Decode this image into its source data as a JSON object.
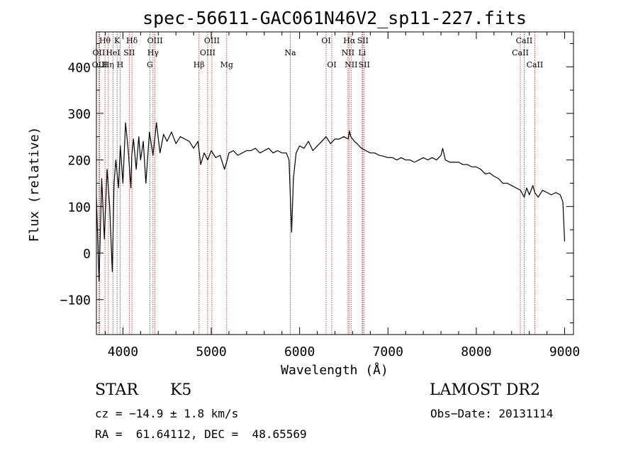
{
  "chart_data": {
    "type": "line",
    "title": "spec-56611-GAC061N46V2_sp11-227.fits",
    "xlabel": "Wavelength (Å)",
    "ylabel": "Flux (relative)",
    "xlim": [
      3700,
      9100
    ],
    "ylim": [
      -175,
      475
    ],
    "xticks": [
      4000,
      5000,
      6000,
      7000,
      8000,
      9000
    ],
    "yticks": [
      -100,
      0,
      100,
      200,
      300,
      400
    ],
    "grid": false,
    "series": [
      {
        "name": "flux",
        "x": [
          3700,
          3730,
          3760,
          3790,
          3820,
          3850,
          3880,
          3900,
          3920,
          3950,
          3970,
          4000,
          4030,
          4060,
          4090,
          4100,
          4120,
          4150,
          4180,
          4200,
          4230,
          4260,
          4300,
          4340,
          4380,
          4420,
          4460,
          4500,
          4550,
          4600,
          4650,
          4700,
          4750,
          4800,
          4850,
          4880,
          4920,
          4960,
          5000,
          5050,
          5100,
          5150,
          5180,
          5200,
          5250,
          5300,
          5350,
          5400,
          5450,
          5500,
          5550,
          5600,
          5650,
          5700,
          5750,
          5800,
          5850,
          5880,
          5895,
          5910,
          5930,
          5960,
          6000,
          6050,
          6100,
          6150,
          6200,
          6250,
          6300,
          6350,
          6400,
          6450,
          6500,
          6550,
          6563,
          6580,
          6620,
          6650,
          6700,
          6750,
          6800,
          6850,
          6900,
          6950,
          7000,
          7050,
          7100,
          7150,
          7200,
          7250,
          7300,
          7350,
          7400,
          7450,
          7500,
          7550,
          7600,
          7620,
          7650,
          7700,
          7750,
          7800,
          7850,
          7900,
          7950,
          8000,
          8050,
          8100,
          8150,
          8200,
          8250,
          8300,
          8350,
          8400,
          8450,
          8500,
          8542,
          8570,
          8600,
          8640,
          8662,
          8700,
          8750,
          8800,
          8850,
          8900,
          8950,
          8980,
          9000
        ],
        "values": [
          120,
          -60,
          160,
          30,
          180,
          100,
          -40,
          150,
          200,
          140,
          230,
          150,
          280,
          220,
          140,
          210,
          245,
          180,
          250,
          200,
          240,
          150,
          260,
          210,
          280,
          215,
          255,
          240,
          260,
          235,
          250,
          245,
          240,
          225,
          240,
          190,
          215,
          200,
          220,
          205,
          210,
          180,
          200,
          215,
          220,
          210,
          215,
          220,
          220,
          225,
          215,
          220,
          225,
          215,
          220,
          215,
          215,
          200,
          120,
          45,
          160,
          215,
          230,
          225,
          240,
          220,
          230,
          240,
          250,
          235,
          245,
          245,
          250,
          245,
          262,
          250,
          240,
          235,
          225,
          220,
          215,
          215,
          210,
          208,
          205,
          205,
          200,
          205,
          200,
          200,
          195,
          200,
          205,
          200,
          205,
          200,
          210,
          225,
          200,
          195,
          195,
          195,
          190,
          190,
          185,
          185,
          180,
          170,
          172,
          165,
          160,
          150,
          150,
          145,
          140,
          135,
          120,
          140,
          125,
          145,
          130,
          120,
          135,
          130,
          125,
          130,
          125,
          110,
          25
        ]
      }
    ],
    "lines": [
      {
        "label": "Hθ",
        "x": 3797,
        "row": 1
      },
      {
        "label": "OII",
        "x": 3727,
        "row": 2
      },
      {
        "label": "OIII",
        "x": 3737,
        "row": 3
      },
      {
        "label": "Hη",
        "x": 3835,
        "row": 3
      },
      {
        "label": "HeI",
        "x": 3889,
        "row": 2
      },
      {
        "label": "K",
        "x": 3934,
        "row": 1
      },
      {
        "label": "H",
        "x": 3968,
        "row": 3
      },
      {
        "label": "SII",
        "x": 4072,
        "row": 2
      },
      {
        "label": "Hδ",
        "x": 4102,
        "row": 1
      },
      {
        "label": "G",
        "x": 4305,
        "row": 3
      },
      {
        "label": "Hγ",
        "x": 4341,
        "row": 2
      },
      {
        "label": "OIII",
        "x": 4363,
        "row": 1
      },
      {
        "label": "Hβ",
        "x": 4861,
        "row": 3
      },
      {
        "label": "OIII",
        "x": 4959,
        "row": 2
      },
      {
        "label": "OIII",
        "x": 5007,
        "row": 1
      },
      {
        "label": "Mg",
        "x": 5175,
        "row": 3
      },
      {
        "label": "Na",
        "x": 5894,
        "row": 2
      },
      {
        "label": "OI",
        "x": 6300,
        "row": 1
      },
      {
        "label": "OI",
        "x": 6364,
        "row": 3
      },
      {
        "label": "NII",
        "x": 6548,
        "row": 2
      },
      {
        "label": "Hα",
        "x": 6563,
        "row": 1
      },
      {
        "label": "NII",
        "x": 6583,
        "row": 3
      },
      {
        "label": "SII",
        "x": 6716,
        "row": 1
      },
      {
        "label": "Li",
        "x": 6708,
        "row": 2
      },
      {
        "label": "SII",
        "x": 6731,
        "row": 3
      },
      {
        "label": "CaII",
        "x": 8498,
        "row": 2
      },
      {
        "label": "CaII",
        "x": 8542,
        "row": 1
      },
      {
        "label": "CaII",
        "x": 8662,
        "row": 3
      }
    ],
    "colors": {
      "spectrum": "#000000",
      "line_marker": "#b22222"
    }
  },
  "info": {
    "class": "STAR",
    "subclass": "K5",
    "survey": "LAMOST DR2",
    "cz": "cz = −14.9 ± 1.8 km/s",
    "obs_date": "Obs−Date: 20131114",
    "coords": "RA =  61.64112, DEC =  48.65569"
  }
}
